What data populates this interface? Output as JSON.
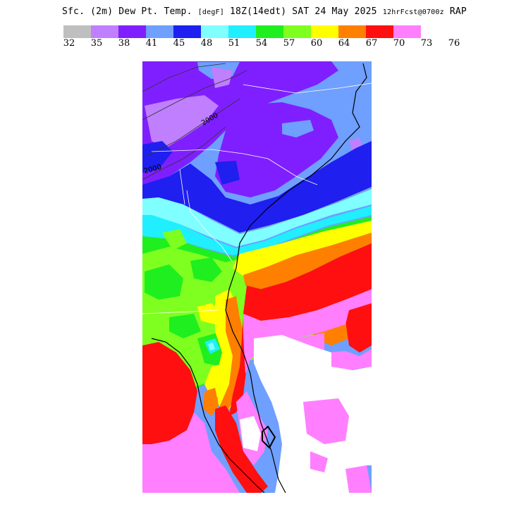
{
  "header": {
    "title_main": "Sfc. (2m) Dew Pt. Temp.",
    "units": "[degF]",
    "valid_time": "18Z(14edt) SAT 24 May 2025",
    "forecast_info": "12hrFcst@0700z",
    "model": "RAP"
  },
  "legend": {
    "colors": [
      "#bfbfbf",
      "#bf7fff",
      "#7f1fff",
      "#6f9fff",
      "#1f1fef",
      "#7fffff",
      "#1fefff",
      "#1fef1f",
      "#7fff1f",
      "#ffff00",
      "#ff7f00",
      "#ff0f0f",
      "#ff7fff"
    ],
    "ticks": [
      "32",
      "35",
      "38",
      "41",
      "45",
      "48",
      "51",
      "54",
      "57",
      "60",
      "64",
      "67",
      "70",
      "73",
      "76"
    ]
  },
  "map": {
    "region": "Southeastern United States",
    "contour_labels": [
      "2000",
      "2000"
    ]
  }
}
